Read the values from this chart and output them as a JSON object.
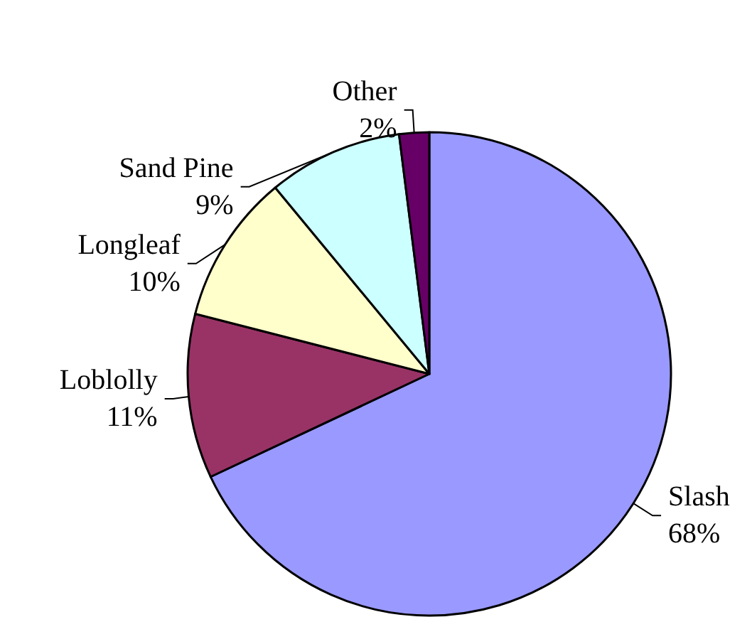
{
  "chart_data": {
    "type": "pie",
    "categories": [
      "Slash",
      "Loblolly",
      "Longleaf",
      "Sand Pine",
      "Other"
    ],
    "values": [
      68,
      11,
      10,
      9,
      2
    ],
    "colors": [
      "#9999ff",
      "#993366",
      "#ffffcc",
      "#ccffff",
      "#660066"
    ],
    "value_labels": [
      "68%",
      "11%",
      "10%",
      "9%",
      "2%"
    ],
    "legend": false
  }
}
